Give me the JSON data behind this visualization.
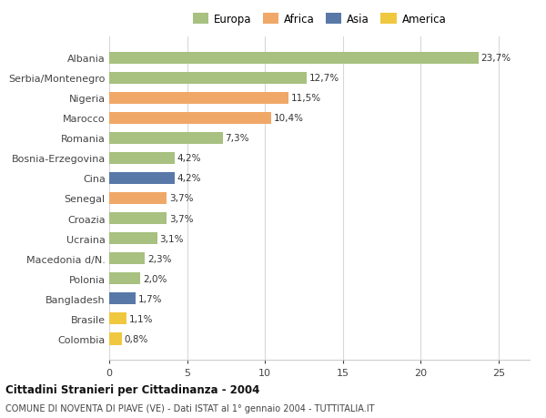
{
  "categories": [
    "Albania",
    "Serbia/Montenegro",
    "Nigeria",
    "Marocco",
    "Romania",
    "Bosnia-Erzegovina",
    "Cina",
    "Senegal",
    "Croazia",
    "Ucraina",
    "Macedonia d/N.",
    "Polonia",
    "Bangladesh",
    "Brasile",
    "Colombia"
  ],
  "values": [
    23.7,
    12.7,
    11.5,
    10.4,
    7.3,
    4.2,
    4.2,
    3.7,
    3.7,
    3.1,
    2.3,
    2.0,
    1.7,
    1.1,
    0.8
  ],
  "labels": [
    "23,7%",
    "12,7%",
    "11,5%",
    "10,4%",
    "7,3%",
    "4,2%",
    "4,2%",
    "3,7%",
    "3,7%",
    "3,1%",
    "2,3%",
    "2,0%",
    "1,7%",
    "1,1%",
    "0,8%"
  ],
  "colors": [
    "#a8c080",
    "#a8c080",
    "#f0a868",
    "#f0a868",
    "#a8c080",
    "#a8c080",
    "#5878a8",
    "#f0a868",
    "#a8c080",
    "#a8c080",
    "#a8c080",
    "#a8c080",
    "#5878a8",
    "#f0c840",
    "#f0c840"
  ],
  "legend_labels": [
    "Europa",
    "Africa",
    "Asia",
    "America"
  ],
  "legend_colors": [
    "#a8c080",
    "#f0a868",
    "#5878a8",
    "#f0c840"
  ],
  "title1": "Cittadini Stranieri per Cittadinanza - 2004",
  "title2": "COMUNE DI NOVENTA DI PIAVE (VE) - Dati ISTAT al 1° gennaio 2004 - TUTTITALIA.IT",
  "xlim": [
    0,
    27
  ],
  "xticks": [
    0,
    5,
    10,
    15,
    20,
    25
  ],
  "background_color": "#ffffff",
  "grid_color": "#d8d8d8"
}
